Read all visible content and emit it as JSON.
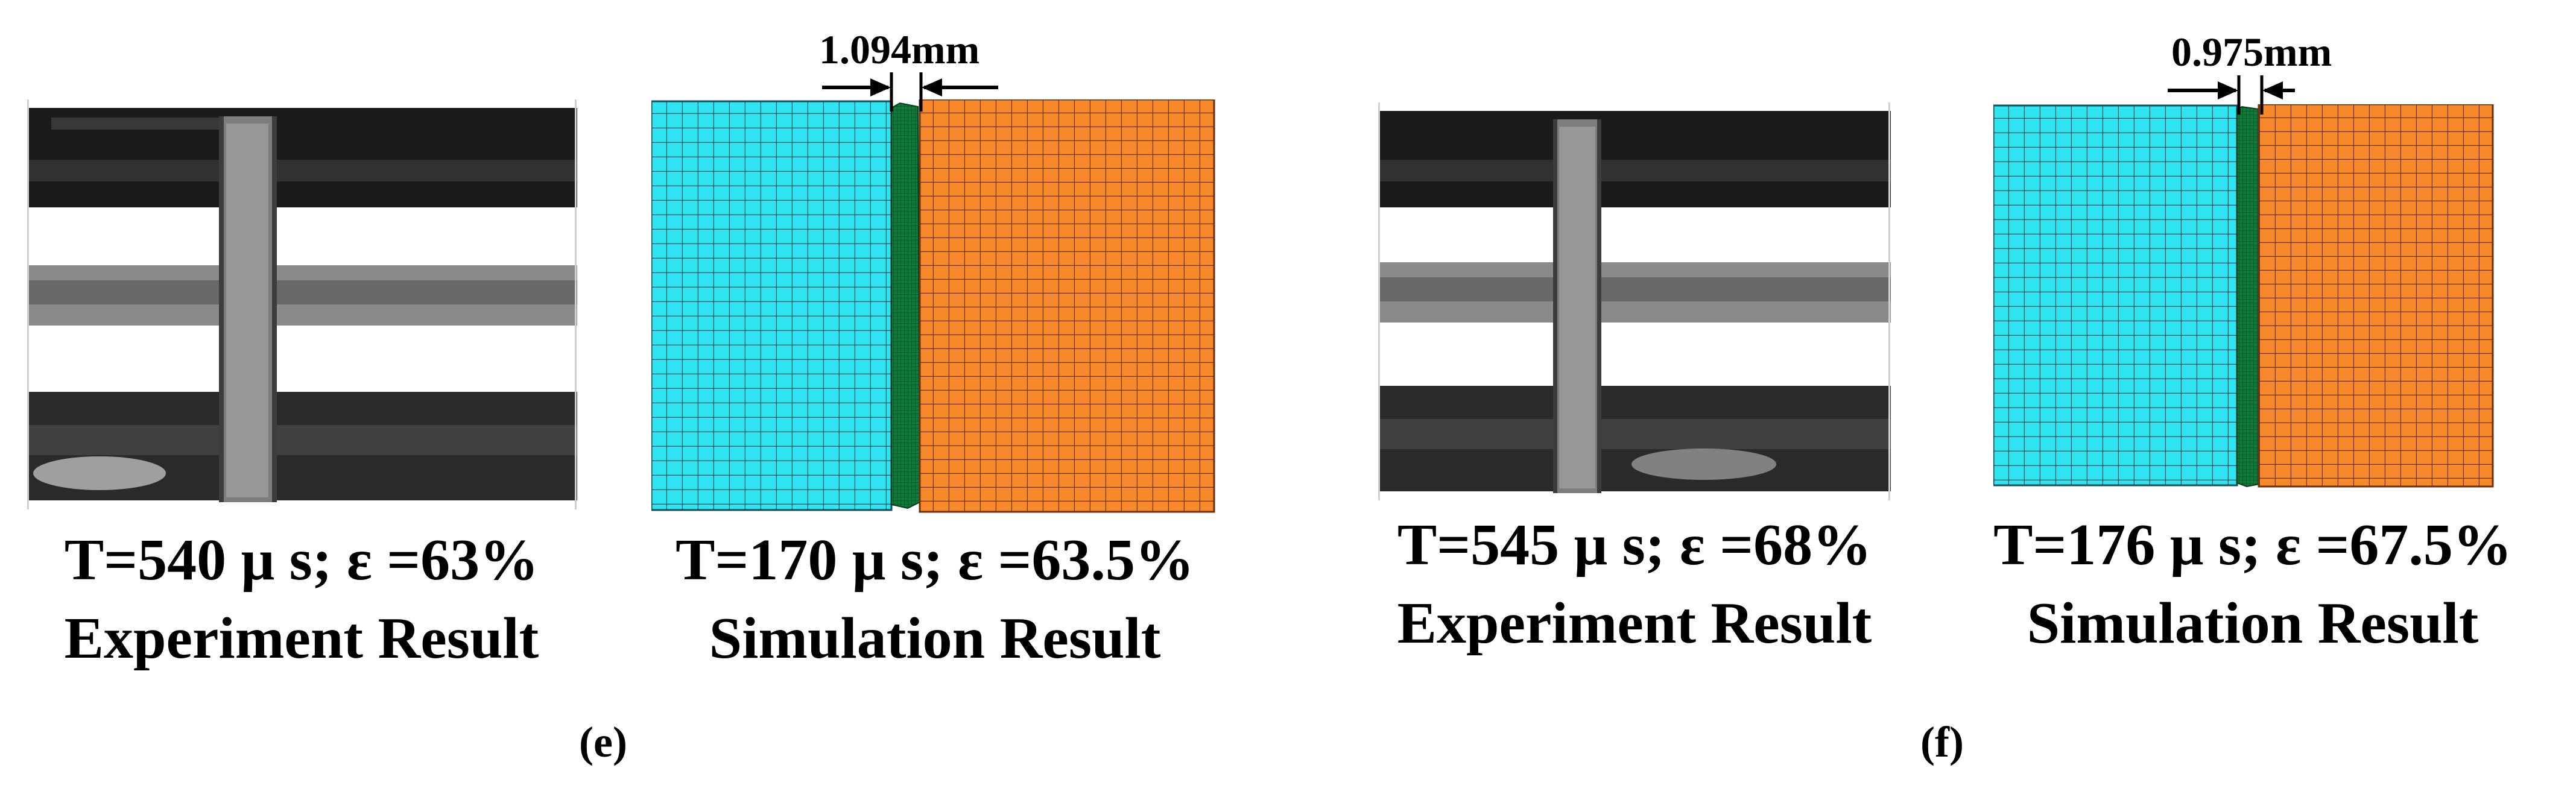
{
  "panels": [
    {
      "id": "e",
      "label": "(e)",
      "dimension": "1.094mm",
      "experiment": {
        "line1": "T=540 μ s; ε =63%",
        "line2": "Experiment Result"
      },
      "simulation": {
        "line1": "T=170 μ s; ε =63.5%",
        "line2": "Simulation Result"
      }
    },
    {
      "id": "f",
      "label": "(f)",
      "dimension": "0.975mm",
      "experiment": {
        "line1": "T=545 μ s; ε =68%",
        "line2": "Experiment Result"
      },
      "simulation": {
        "line1": "T=176 μ s; ε =67.5%",
        "line2": "Simulation Result"
      }
    }
  ],
  "colors": {
    "left_bar": "#29e3ef",
    "right_bar": "#f78a2a",
    "specimen": "#0d6b34",
    "mesh_line": "#1a2a33"
  }
}
